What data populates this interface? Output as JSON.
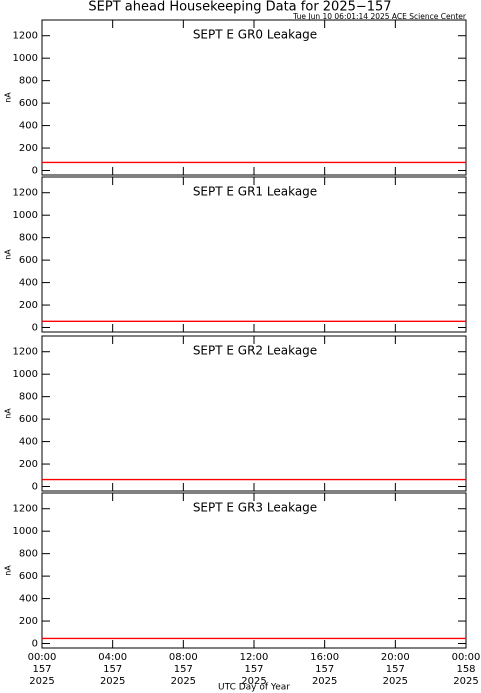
{
  "title": "SEPT ahead Housekeeping Data for 2025−157",
  "subtitle": "Tue Jun 10 06:01:14 2025 ACE Science Center",
  "xlabel": "UTC Day of Year",
  "chart_data": [
    {
      "type": "line",
      "title": "SEPT E GR0 Leakage",
      "ylabel": "nA",
      "xlim": [
        0,
        24
      ],
      "ylim": [
        -40,
        1340
      ],
      "yticks": [
        0,
        200,
        400,
        600,
        800,
        1000,
        1200
      ],
      "x": [
        0,
        24
      ],
      "series": [
        {
          "name": "GR0",
          "color": "#ff0000",
          "values": [
            72,
            72
          ]
        }
      ]
    },
    {
      "type": "line",
      "title": "SEPT E GR1 Leakage",
      "ylabel": "nA",
      "xlim": [
        0,
        24
      ],
      "ylim": [
        -40,
        1340
      ],
      "yticks": [
        0,
        200,
        400,
        600,
        800,
        1000,
        1200
      ],
      "x": [
        0,
        24
      ],
      "series": [
        {
          "name": "GR1",
          "color": "#ff0000",
          "values": [
            55,
            55
          ]
        }
      ]
    },
    {
      "type": "line",
      "title": "SEPT E GR2 Leakage",
      "ylabel": "nA",
      "xlim": [
        0,
        24
      ],
      "ylim": [
        -40,
        1340
      ],
      "yticks": [
        0,
        200,
        400,
        600,
        800,
        1000,
        1200
      ],
      "x": [
        0,
        24
      ],
      "series": [
        {
          "name": "GR2",
          "color": "#ff0000",
          "values": [
            62,
            62
          ]
        }
      ]
    },
    {
      "type": "line",
      "title": "SEPT E GR3 Leakage",
      "ylabel": "nA",
      "xlim": [
        0,
        24
      ],
      "ylim": [
        -40,
        1340
      ],
      "yticks": [
        0,
        200,
        400,
        600,
        800,
        1000,
        1200
      ],
      "x": [
        0,
        24
      ],
      "series": [
        {
          "name": "GR3",
          "color": "#ff0000",
          "values": [
            45,
            45
          ]
        }
      ],
      "xticks": [
        {
          "value": 0,
          "label": [
            "00:00",
            "157",
            "2025"
          ]
        },
        {
          "value": 4,
          "label": [
            "04:00",
            "157",
            "2025"
          ]
        },
        {
          "value": 8,
          "label": [
            "08:00",
            "157",
            "2025"
          ]
        },
        {
          "value": 12,
          "label": [
            "12:00",
            "157",
            "2025"
          ]
        },
        {
          "value": 16,
          "label": [
            "16:00",
            "157",
            "2025"
          ]
        },
        {
          "value": 20,
          "label": [
            "20:00",
            "157",
            "2025"
          ]
        },
        {
          "value": 24,
          "label": [
            "00:00",
            "158",
            "2025"
          ]
        }
      ]
    }
  ]
}
